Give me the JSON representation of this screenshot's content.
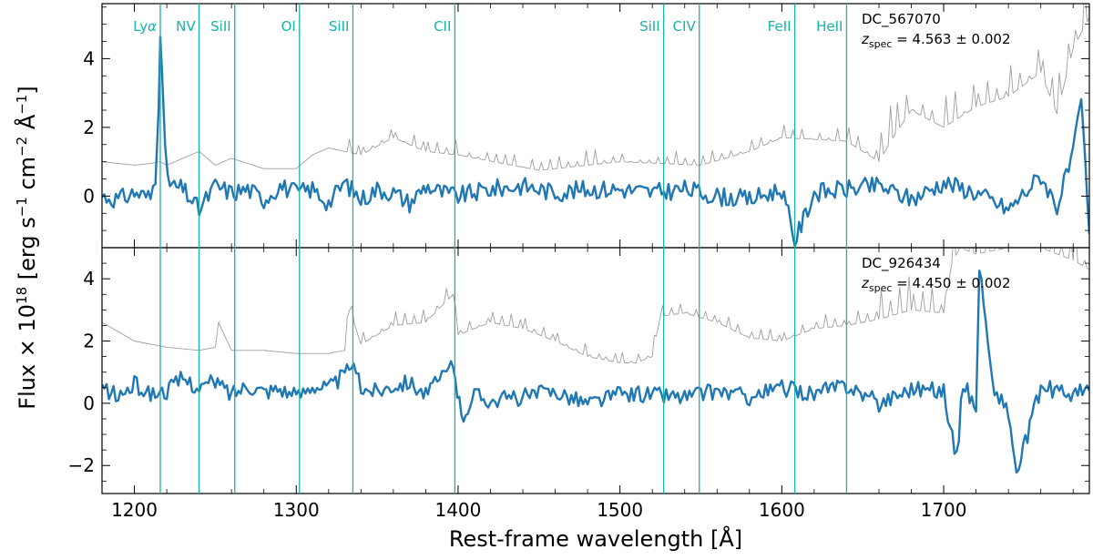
{
  "colors": {
    "spectrum": "#1f77b4",
    "error": "#9e9e9e",
    "lines": "#17b3a8",
    "axes": "#000000"
  },
  "chart_data": {
    "type": "line",
    "xlabel": "Rest-frame wavelength [Å]",
    "ylabel": "Flux × 10^18 [erg s^-1 cm^-2 Å^-1]",
    "xlim": [
      1180,
      1790
    ],
    "xticks": [
      1200,
      1300,
      1400,
      1500,
      1600,
      1700
    ],
    "spectral_lines": [
      {
        "label": "Lyα",
        "wavelength": 1216
      },
      {
        "label": "NV",
        "wavelength": 1240
      },
      {
        "label": "SiII",
        "wavelength": 1262
      },
      {
        "label": "OI",
        "wavelength": 1302
      },
      {
        "label": "SiII",
        "wavelength": 1335
      },
      {
        "label": "CII",
        "wavelength": 1398
      },
      {
        "label": "SiII",
        "wavelength": 1527
      },
      {
        "label": "CIV",
        "wavelength": 1549
      },
      {
        "label": "FeII",
        "wavelength": 1608
      },
      {
        "label": "HeII",
        "wavelength": 1640
      }
    ],
    "panels": [
      {
        "object": "DC_567070",
        "redshift": "4.563 ± 0.002",
        "ylim": [
          -1.5,
          5.6
        ],
        "yticks": [
          0,
          2,
          4
        ],
        "grid": false,
        "series": [
          {
            "role": "flux",
            "x": [
              1180,
              1190,
              1200,
              1210,
              1213,
              1215,
              1216,
              1217,
              1219,
              1222,
              1230,
              1240,
              1250,
              1260,
              1270,
              1280,
              1290,
              1300,
              1310,
              1320,
              1330,
              1340,
              1350,
              1360,
              1370,
              1380,
              1390,
              1400,
              1420,
              1440,
              1460,
              1480,
              1500,
              1520,
              1540,
              1560,
              1580,
              1600,
              1608,
              1620,
              1640,
              1660,
              1680,
              1700,
              1720,
              1740,
              1760,
              1770,
              1780,
              1785,
              1790
            ],
            "y": [
              0.0,
              -0.1,
              0.1,
              -0.05,
              0.6,
              2.8,
              4.9,
              3.5,
              1.2,
              0.3,
              0.2,
              -0.4,
              0.3,
              0.1,
              0.2,
              -0.1,
              0.3,
              0.1,
              0.2,
              -0.2,
              0.4,
              -0.1,
              0.2,
              0.1,
              -0.2,
              0.3,
              0.1,
              0.0,
              0.2,
              0.3,
              0.1,
              0.2,
              0.2,
              0.1,
              0.2,
              0.0,
              -0.1,
              0.2,
              -1.3,
              0.1,
              0.2,
              0.3,
              -0.1,
              0.4,
              0.1,
              -0.4,
              0.6,
              -0.3,
              1.2,
              2.8,
              -1.1
            ]
          },
          {
            "role": "error",
            "x": [
              1180,
              1200,
              1210,
              1216,
              1220,
              1240,
              1250,
              1260,
              1280,
              1300,
              1310,
              1320,
              1340,
              1360,
              1380,
              1400,
              1450,
              1500,
              1550,
              1580,
              1600,
              1640,
              1660,
              1670,
              1680,
              1700,
              1720,
              1740,
              1760,
              1770,
              1780,
              1790
            ],
            "y": [
              1.0,
              0.9,
              0.95,
              1.0,
              0.9,
              1.3,
              0.9,
              1.1,
              0.8,
              0.8,
              1.2,
              1.4,
              1.2,
              1.7,
              1.3,
              1.2,
              0.75,
              1.0,
              0.9,
              1.3,
              1.7,
              1.6,
              1.0,
              1.8,
              2.5,
              2.0,
              2.6,
              2.9,
              3.6,
              2.4,
              4.3,
              5.2
            ]
          }
        ]
      },
      {
        "object": "DC_926434",
        "redshift": "4.450 ± 0.002",
        "ylim": [
          -2.9,
          5.0
        ],
        "yticks": [
          -2,
          0,
          2,
          4
        ],
        "grid": false,
        "series": [
          {
            "role": "flux",
            "x": [
              1180,
              1190,
              1200,
              1210,
              1220,
              1230,
              1240,
              1250,
              1260,
              1270,
              1280,
              1290,
              1300,
              1310,
              1320,
              1330,
              1334,
              1340,
              1350,
              1360,
              1370,
              1380,
              1390,
              1397,
              1402,
              1410,
              1420,
              1440,
              1460,
              1480,
              1500,
              1520,
              1540,
              1560,
              1580,
              1600,
              1620,
              1640,
              1660,
              1680,
              1700,
              1708,
              1712,
              1720,
              1722,
              1730,
              1740,
              1745,
              1760,
              1780,
              1790
            ],
            "y": [
              0.5,
              0.2,
              0.6,
              0.3,
              0.4,
              0.8,
              0.5,
              0.7,
              0.3,
              0.6,
              0.4,
              0.5,
              0.2,
              0.6,
              0.5,
              0.9,
              1.3,
              0.5,
              0.4,
              0.6,
              0.7,
              0.3,
              0.8,
              1.3,
              -0.5,
              0.3,
              0.1,
              0.2,
              0.4,
              0.0,
              0.3,
              0.3,
              0.2,
              0.4,
              0.2,
              0.5,
              0.3,
              0.6,
              0.0,
              0.5,
              0.4,
              -1.8,
              0.7,
              -0.2,
              4.5,
              0.6,
              -0.3,
              -2.3,
              0.5,
              0.3,
              0.4
            ]
          },
          {
            "role": "error",
            "x": [
              1180,
              1190,
              1200,
              1210,
              1220,
              1240,
              1250,
              1252,
              1260,
              1280,
              1300,
              1320,
              1330,
              1333,
              1340,
              1360,
              1380,
              1397,
              1400,
              1420,
              1440,
              1460,
              1480,
              1490,
              1500,
              1510,
              1520,
              1525,
              1540,
              1560,
              1580,
              1600,
              1620,
              1640,
              1660,
              1680,
              1700,
              1705,
              1710,
              1720,
              1740,
              1760,
              1780,
              1790
            ],
            "y": [
              2.6,
              2.3,
              2.0,
              1.9,
              1.8,
              1.7,
              1.8,
              2.6,
              1.7,
              1.7,
              1.6,
              1.6,
              1.7,
              3.0,
              1.9,
              2.5,
              2.6,
              3.5,
              2.2,
              2.6,
              2.4,
              2.0,
              1.5,
              1.4,
              1.3,
              1.3,
              1.5,
              2.8,
              2.9,
              2.6,
              2.1,
              2.0,
              2.4,
              2.5,
              2.7,
              3.0,
              2.9,
              4.5,
              5.0,
              4.8,
              5.0,
              5.0,
              4.6,
              4.3
            ]
          }
        ]
      }
    ]
  }
}
